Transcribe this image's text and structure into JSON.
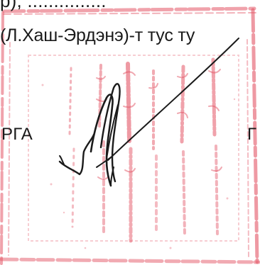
{
  "document": {
    "top_line_partial": "р), ...............",
    "name_line": "(Л.Хаш-Эрдэнэ)-т тус ту",
    "left_fragment": "РГА",
    "right_fragment": "Г"
  },
  "stamp": {
    "color": "#e0485a",
    "shape": "square-seal",
    "script": "Mongolian vertical script"
  },
  "signature": {
    "color": "#1b1b1b",
    "kind": "handwritten"
  }
}
